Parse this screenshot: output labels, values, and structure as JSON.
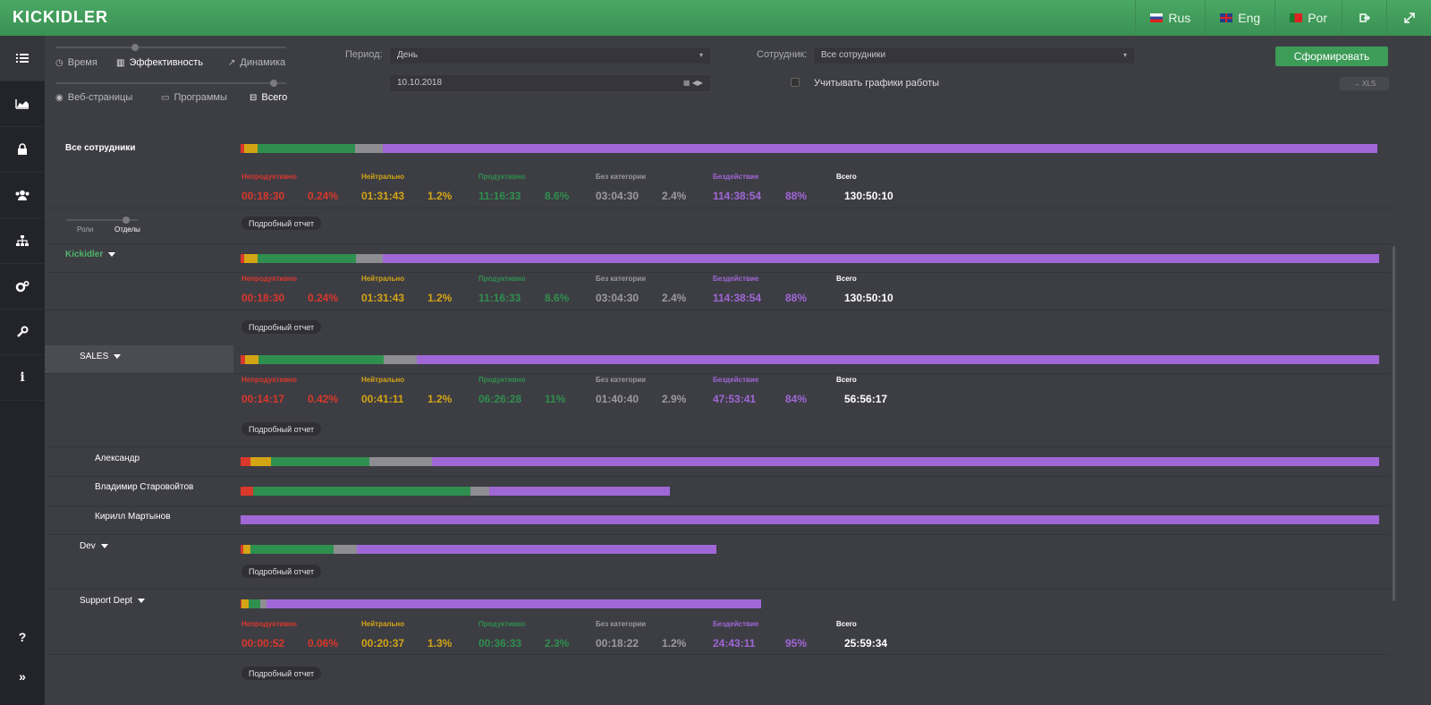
{
  "app": {
    "logo": "KICKIDLER"
  },
  "topnav": {
    "langs": [
      {
        "label": "Rus"
      },
      {
        "label": "Eng"
      },
      {
        "label": "Por"
      }
    ],
    "logout_icon": "sign-out-icon",
    "fullscreen_icon": "expand-icon"
  },
  "sidebar": {
    "items": [
      "list-icon",
      "area-chart-icon",
      "lock-icon",
      "users-icon",
      "sitemap-icon",
      "gears-icon",
      "wrench-icon",
      "info-icon"
    ],
    "help": "?",
    "expand": "»"
  },
  "filters": {
    "view_opts": [
      "Время",
      "Эффективность",
      "Динамика"
    ],
    "scope_opts": [
      "Веб-страницы",
      "Программы",
      "Всего"
    ],
    "period_label": "Период:",
    "period_value": "День",
    "date_value": "10.10.2018",
    "employee_label": "Сотрудник:",
    "employee_value": "Все сотрудники",
    "schedule_label": "Учитывать графики работы",
    "submit": "Сформировать",
    "xls": "→ XLS",
    "roles_label": "Роли",
    "depts_label": "Отделы"
  },
  "colors": {
    "red": "#d9382b",
    "yellow": "#d3a514",
    "green": "#2f8f4e",
    "gray": "#8e8e92",
    "purple": "#a067d6"
  },
  "stat_labels": [
    "Непродуктивно",
    "Нейтрально",
    "Продуктивно",
    "Без категории",
    "Бездействие",
    "Всего"
  ],
  "detail_label": "Подробный отчет",
  "rows": {
    "all": {
      "name": "Все сотрудники",
      "bar": [
        0.3,
        1.2,
        8.6,
        2.4,
        87.5
      ],
      "stats": [
        "00:18:30",
        "0.24%",
        "01:31:43",
        "1.2%",
        "11:16:33",
        "8.6%",
        "03:04:30",
        "2.4%",
        "114:38:54",
        "88%",
        "130:50:10"
      ]
    },
    "kickidler": {
      "name": "Kickidler",
      "bar": [
        0.3,
        1.2,
        8.6,
        2.4,
        87.5
      ],
      "stats": [
        "00:18:30",
        "0.24%",
        "01:31:43",
        "1.2%",
        "11:16:33",
        "8.6%",
        "03:04:30",
        "2.4%",
        "114:38:54",
        "88%",
        "130:50:10"
      ]
    },
    "sales": {
      "name": "SALES",
      "bar": [
        0.4,
        1.2,
        11,
        2.9,
        84.5
      ],
      "stats": [
        "00:14:17",
        "0.42%",
        "00:41:11",
        "1.2%",
        "06:26:28",
        "11%",
        "01:40:40",
        "2.9%",
        "47:53:41",
        "84%",
        "56:56:17"
      ]
    },
    "alexandr": {
      "name": "Александр",
      "bar": [
        0.9,
        1.8,
        8.6,
        5.5,
        83.2
      ]
    },
    "vladimir": {
      "name": "Владимир Старовойтов",
      "bar": [
        1.1,
        0,
        19.1,
        1.6,
        15.9
      ]
    },
    "kirill": {
      "name": "Кирилл Мартынов",
      "bar": [
        0,
        0,
        0,
        0,
        100
      ]
    },
    "dev": {
      "name": "Dev",
      "bar": [
        0.2,
        0.7,
        7.3,
        2,
        31.6
      ]
    },
    "support": {
      "name": "Support Dept",
      "bar": [
        0.1,
        0.6,
        1,
        0.6,
        43.4
      ],
      "stats": [
        "00:00:52",
        "0.06%",
        "00:20:37",
        "1.3%",
        "00:36:33",
        "2.3%",
        "00:18:22",
        "1.2%",
        "24:43:11",
        "95%",
        "25:59:34"
      ]
    }
  }
}
